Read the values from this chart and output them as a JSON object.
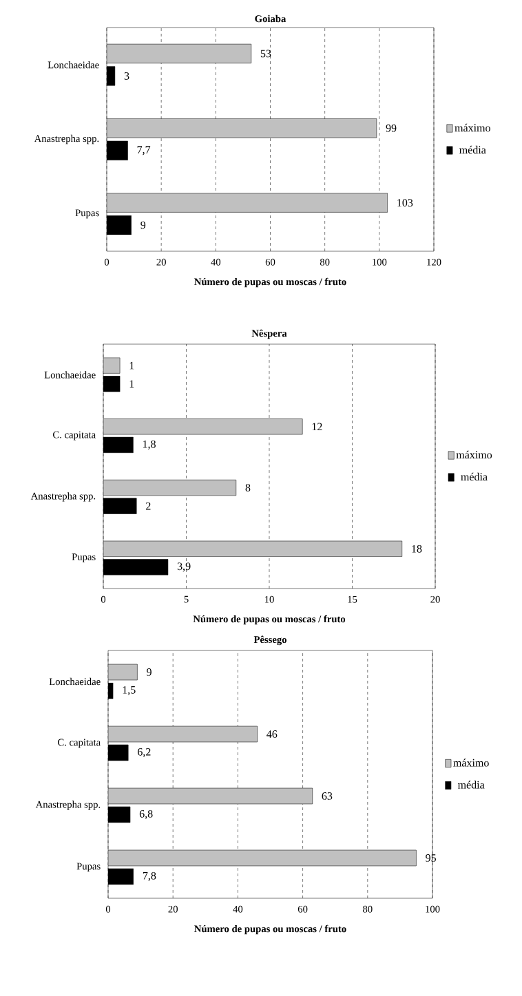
{
  "chart_data": [
    {
      "type": "bar",
      "orientation": "horizontal",
      "title": "Goiaba",
      "xlabel": "Número de pupas ou moscas / fruto",
      "categories": [
        "Lonchaeidae",
        "Anastrepha spp.",
        "Pupas"
      ],
      "series": [
        {
          "name": "máximo",
          "color": "#c0c0c0",
          "values": [
            53,
            99,
            103
          ],
          "value_labels": [
            "53",
            "99",
            "103"
          ]
        },
        {
          "name": "média",
          "color": "#000000",
          "values": [
            3,
            7.7,
            9
          ],
          "value_labels": [
            "3",
            "7,7",
            "9"
          ]
        }
      ],
      "xlim": [
        0,
        120
      ],
      "xticks": [
        0,
        20,
        40,
        60,
        80,
        100,
        120
      ],
      "grid": "x",
      "legend": "right"
    },
    {
      "type": "bar",
      "orientation": "horizontal",
      "title": "Nêspera",
      "xlabel": "Número de pupas ou moscas / fruto",
      "categories": [
        "Lonchaeidae",
        "C. capitata",
        "Anastrepha spp.",
        "Pupas"
      ],
      "series": [
        {
          "name": "máximo",
          "color": "#c0c0c0",
          "values": [
            1,
            12,
            8,
            18
          ],
          "value_labels": [
            "1",
            "12",
            "8",
            "18"
          ]
        },
        {
          "name": "média",
          "color": "#000000",
          "values": [
            1,
            1.8,
            2,
            3.9
          ],
          "value_labels": [
            "1",
            "1,8",
            "2",
            "3,9"
          ]
        }
      ],
      "xlim": [
        0,
        20
      ],
      "xticks": [
        0,
        5,
        10,
        15,
        20
      ],
      "grid": "x",
      "legend": "right"
    },
    {
      "type": "bar",
      "orientation": "horizontal",
      "title": "Pêssego",
      "xlabel": "Número de pupas ou moscas / fruto",
      "categories": [
        "Lonchaeidae",
        "C. capitata",
        "Anastrepha spp.",
        "Pupas"
      ],
      "series": [
        {
          "name": "máximo",
          "color": "#c0c0c0",
          "values": [
            9,
            46,
            63,
            95
          ],
          "value_labels": [
            "9",
            "46",
            "63",
            "95"
          ]
        },
        {
          "name": "média",
          "color": "#000000",
          "values": [
            1.5,
            6.2,
            6.8,
            7.8
          ],
          "value_labels": [
            "1,5",
            "6,2",
            "6,8",
            "7,8"
          ]
        }
      ],
      "xlim": [
        0,
        100
      ],
      "xticks": [
        0,
        20,
        40,
        60,
        80,
        100
      ],
      "grid": "x",
      "legend": "right"
    }
  ]
}
